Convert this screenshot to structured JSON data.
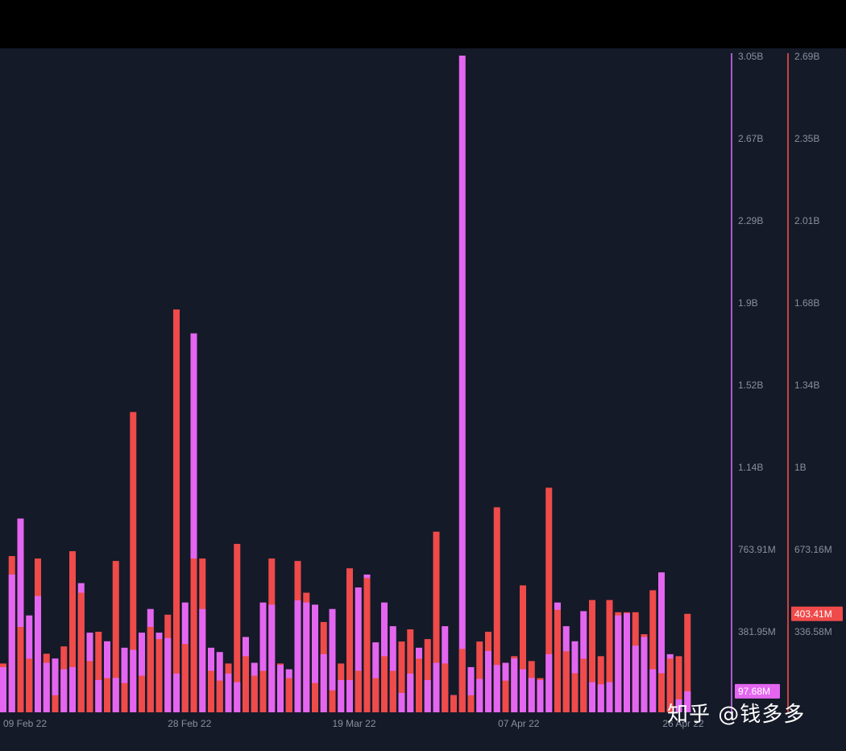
{
  "watermark": "知乎 @钱多多",
  "colors": {
    "background": "#151a28",
    "series_a": "#e466f0",
    "series_b": "#ef4b4a",
    "axis_a_line": "#a45ec8",
    "axis_b_line": "#c5443f",
    "tick_text": "#8a8f9f"
  },
  "chart_data": {
    "type": "bar",
    "stacked": true,
    "grid": false,
    "x_tick_labels": [
      "09 Feb 22",
      "28 Feb 22",
      "19 Mar 22",
      "07 Apr 22",
      "26 Apr 22"
    ],
    "x_tick_positions": [
      0,
      19,
      38,
      57,
      76
    ],
    "left_axis": {
      "ticks": [
        "3.05B",
        "2.67B",
        "2.29B",
        "1.9B",
        "1.52B",
        "1.14B",
        "763.91M",
        "381.95M"
      ],
      "ylim": [
        0,
        3050000000
      ],
      "current_value_badge": "97.68M"
    },
    "right_axis": {
      "ticks": [
        "2.69B",
        "2.35B",
        "2.01B",
        "1.68B",
        "1.34B",
        "1B",
        "673.16M",
        "336.58M"
      ],
      "ylim": [
        0,
        2690000000
      ],
      "current_value_badge": "403.41M"
    },
    "series": [
      {
        "axis": "left",
        "values": [
          210000000,
          640000000,
          900000000,
          450000000,
          540000000,
          230000000,
          250000000,
          200000000,
          210000000,
          600000000,
          370000000,
          150000000,
          330000000,
          160000000,
          300000000,
          290000000,
          370000000,
          480000000,
          370000000,
          345000000,
          180000000,
          510000000,
          1760000000,
          480000000,
          300000000,
          280000000,
          180000000,
          140000000,
          350000000,
          230000000,
          510000000,
          500000000,
          220000000,
          200000000,
          520000000,
          510000000,
          500000000,
          270000000,
          480000000,
          150000000,
          150000000,
          580000000,
          640000000,
          325000000,
          510000000,
          400000000,
          90000000,
          180000000,
          300000000,
          150000000,
          230000000,
          400000000,
          80000000,
          3050000000,
          210000000,
          155000000,
          285000000,
          220000000,
          230000000,
          250000000,
          200000000,
          160000000,
          150000000,
          270000000,
          510000000,
          400000000,
          330000000,
          470000000,
          140000000,
          130000000,
          140000000,
          450000000,
          460000000,
          310000000,
          350000000,
          200000000,
          650000000,
          270000000,
          60000000,
          97680000
        ],
        "values_note_axis": "left"
      },
      {
        "axis": "right",
        "values": [
          200000000,
          640000000,
          350000000,
          220000000,
          630000000,
          240000000,
          70000000,
          270000000,
          660000000,
          490000000,
          210000000,
          330000000,
          140000000,
          620000000,
          120000000,
          1230000000,
          150000000,
          350000000,
          300000000,
          400000000,
          1650000000,
          280000000,
          630000000,
          630000000,
          170000000,
          130000000,
          200000000,
          690000000,
          230000000,
          150000000,
          170000000,
          630000000,
          200000000,
          140000000,
          620000000,
          490000000,
          120000000,
          370000000,
          90000000,
          200000000,
          590000000,
          170000000,
          550000000,
          140000000,
          230000000,
          170000000,
          290000000,
          340000000,
          220000000,
          300000000,
          740000000,
          200000000,
          70000000,
          260000000,
          70000000,
          290000000,
          330000000,
          840000000,
          130000000,
          230000000,
          520000000,
          210000000,
          140000000,
          920000000,
          420000000,
          250000000,
          160000000,
          220000000,
          460000000,
          230000000,
          460000000,
          410000000,
          410000000,
          410000000,
          320000000,
          500000000,
          160000000,
          220000000,
          230000000,
          403410000
        ],
        "values_note_axis": "right"
      }
    ]
  }
}
